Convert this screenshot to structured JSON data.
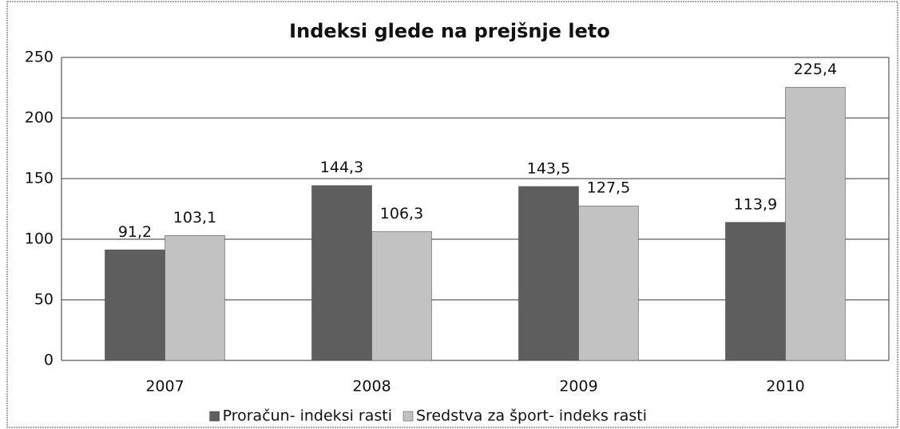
{
  "chart_data": {
    "type": "bar",
    "title": "Indeksi glede na prejšnje leto",
    "categories": [
      "2007",
      "2008",
      "2009",
      "2010"
    ],
    "series": [
      {
        "name": "Proračun- indeksi rasti",
        "color": "#5e5e5e",
        "values": [
          91.2,
          144.3,
          143.5,
          113.9
        ],
        "value_labels": [
          "91,2",
          "144,3",
          "143,5",
          "113,9"
        ]
      },
      {
        "name": "Sredstva za šport- indeks rasti",
        "color": "#c2c2c2",
        "values": [
          103.1,
          106.3,
          127.5,
          225.4
        ],
        "value_labels": [
          "103,1",
          "106,3",
          "127,5",
          "225,4"
        ]
      }
    ],
    "ylim": [
      0,
      250
    ],
    "yticks": [
      0,
      50,
      100,
      150,
      200,
      250
    ],
    "grid": true,
    "legend": "bottom"
  }
}
